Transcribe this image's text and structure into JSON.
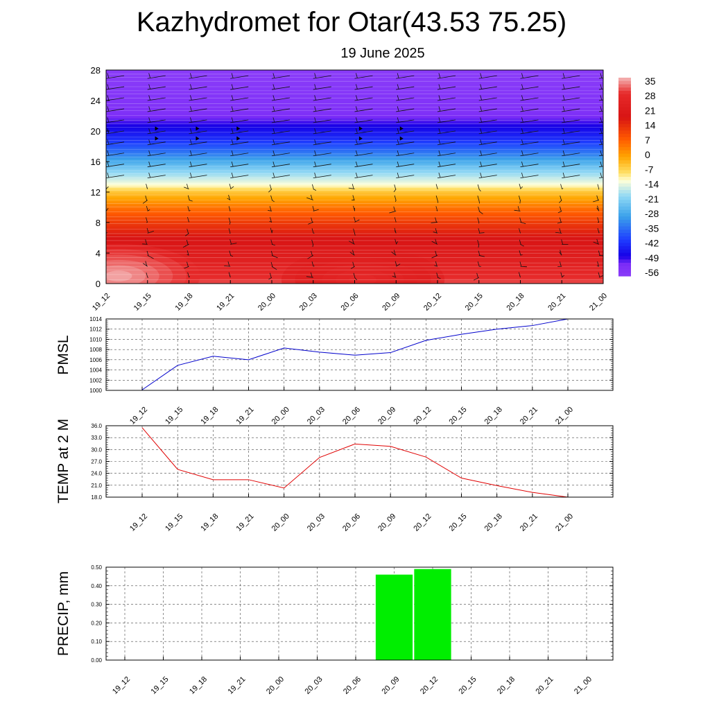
{
  "header": {
    "title": "Kazhydromet for Otar(43.53 75.25)",
    "date": "19 June 2025"
  },
  "chart_data": [
    {
      "type": "heatmap",
      "title": "",
      "x_categories": [
        "19_12",
        "19_15",
        "19_18",
        "19_21",
        "20_00",
        "20_03",
        "20_06",
        "20_09",
        "20_12",
        "20_15",
        "20_18",
        "20_21",
        "21_00"
      ],
      "y_ticks": [
        0,
        4,
        8,
        12,
        16,
        20,
        24,
        28
      ],
      "ylim": [
        0,
        28
      ],
      "colorbar_labels": [
        "35",
        "28",
        "21",
        "14",
        "7",
        "0",
        "-7",
        "-14",
        "-21",
        "-28",
        "-35",
        "-42",
        "-49",
        "-56"
      ],
      "colormap_stops": [
        {
          "value": 38,
          "color": "#f4b8b8"
        },
        {
          "value": 30,
          "color": "#e62a2a"
        },
        {
          "value": 18,
          "color": "#d81414"
        },
        {
          "value": 7,
          "color": "#ff5a00"
        },
        {
          "value": -2,
          "color": "#ffa500"
        },
        {
          "value": -10,
          "color": "#ffe066"
        },
        {
          "value": -14,
          "color": "#ffffd8"
        },
        {
          "value": -22,
          "color": "#8fd8f5"
        },
        {
          "value": -32,
          "color": "#3ba2ea"
        },
        {
          "value": -44,
          "color": "#1e3cff"
        },
        {
          "value": -52,
          "color": "#1600e6"
        },
        {
          "value": -56,
          "color": "#7b2cf7"
        },
        {
          "value": -62,
          "color": "#8a3cf8"
        }
      ],
      "temperature_profile": [
        {
          "height": 0,
          "value": 32
        },
        {
          "height": 3,
          "value": 25
        },
        {
          "height": 6,
          "value": 18
        },
        {
          "height": 8,
          "value": 12
        },
        {
          "height": 10,
          "value": 4
        },
        {
          "height": 12,
          "value": -6
        },
        {
          "height": 13,
          "value": -14
        },
        {
          "height": 15,
          "value": -24
        },
        {
          "height": 17,
          "value": -36
        },
        {
          "height": 19,
          "value": -46
        },
        {
          "height": 21,
          "value": -53
        },
        {
          "height": 22.5,
          "value": -58
        },
        {
          "height": 28,
          "value": -62
        }
      ],
      "surface_warm_spots": [
        {
          "x": 0.3,
          "height": 1.0,
          "value": 38
        },
        {
          "x": 6.2,
          "height": 0.5,
          "value": 30
        }
      ],
      "wind_barbs": "present"
    },
    {
      "type": "line",
      "ylabel": "PMSL",
      "categories": [
        "19_12",
        "19_15",
        "19_18",
        "19_21",
        "20_00",
        "20_03",
        "20_06",
        "20_09",
        "20_12",
        "20_15",
        "20_18",
        "20_21",
        "21_00"
      ],
      "values": [
        1000.1,
        1004.9,
        1006.7,
        1006.0,
        1008.3,
        1007.5,
        1006.9,
        1007.4,
        1009.8,
        1011.0,
        1012.0,
        1012.7,
        1014.0
      ],
      "ylim": [
        1000,
        1014
      ],
      "yticks": [
        "1000",
        "1002",
        "1004",
        "1006",
        "1008",
        "1010",
        "1012",
        "1014"
      ],
      "color": "#0000cc",
      "grid": true
    },
    {
      "type": "line",
      "ylabel": "TEMP at 2 M",
      "categories": [
        "19_12",
        "19_15",
        "19_18",
        "19_21",
        "20_00",
        "20_03",
        "20_06",
        "20_09",
        "20_12",
        "20_15",
        "20_18",
        "20_21",
        "21_00"
      ],
      "values": [
        35.5,
        25.0,
        22.4,
        22.4,
        20.3,
        28.0,
        31.4,
        30.8,
        28.1,
        22.8,
        20.9,
        19.2,
        18.0
      ],
      "ylim": [
        18,
        36
      ],
      "yticks": [
        "18.0",
        "21.0",
        "24.0",
        "27.0",
        "30.0",
        "33.0",
        "36.0"
      ],
      "color": "#e00000",
      "grid": true
    },
    {
      "type": "bar",
      "ylabel": "PRECIP, mm",
      "categories": [
        "19_12",
        "19_15",
        "19_18",
        "19_21",
        "20_00",
        "20_03",
        "20_06",
        "20_09",
        "20_12",
        "20_15",
        "20_18",
        "20_21",
        "21_00"
      ],
      "values": [
        0,
        0,
        0,
        0,
        0,
        0,
        0,
        0.46,
        0.49,
        0,
        0,
        0,
        0
      ],
      "ylim": [
        0,
        0.5
      ],
      "yticks": [
        "0.00",
        "0.10",
        "0.20",
        "0.30",
        "0.40",
        "0.50"
      ],
      "color": "#00ee00",
      "grid": true
    }
  ]
}
